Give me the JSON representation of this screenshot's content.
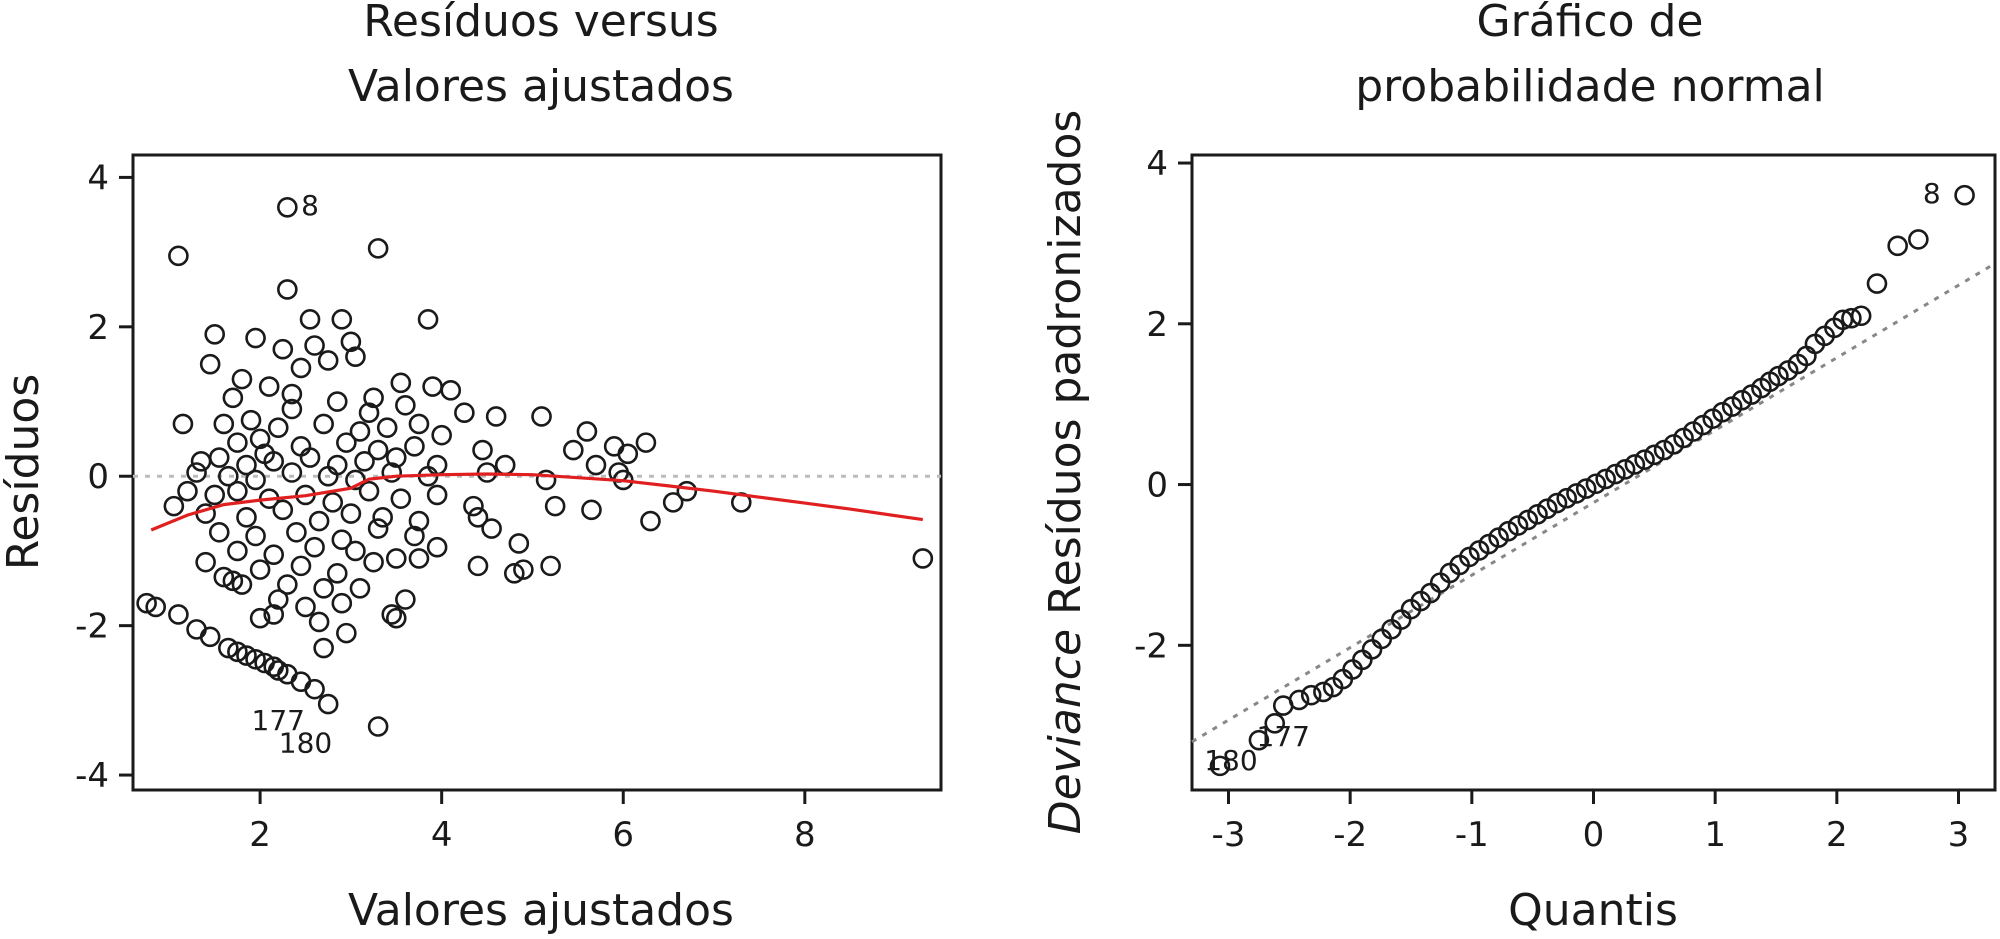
{
  "chart_data": [
    {
      "type": "scatter",
      "title_lines": [
        "Resíduos versus",
        "Valores ajustados"
      ],
      "xlabel": "Valores ajustados",
      "ylabel": "Resíduos",
      "xlim": [
        0.6,
        9.5
      ],
      "ylim": [
        -4.2,
        4.3
      ],
      "x_ticks": [
        2,
        4,
        6,
        8
      ],
      "y_ticks": [
        -4,
        -2,
        0,
        2,
        4
      ],
      "x_tick_labels": [
        "2",
        "4",
        "6",
        "8"
      ],
      "y_tick_labels": [
        "-4",
        "-2",
        "0",
        "2",
        "4"
      ],
      "grid": false,
      "reference_line": {
        "y": 0,
        "style": "dotted",
        "color": "#bbbbbb"
      },
      "smooth_line": {
        "color": "#e02020",
        "x": [
          0.8,
          1.2,
          1.6,
          2.0,
          2.5,
          3.0,
          3.2,
          3.5,
          4.0,
          4.5,
          5.0,
          5.5,
          6.0,
          6.5,
          7.0,
          7.5,
          8.0,
          8.5,
          9.3
        ],
        "y": [
          -0.72,
          -0.52,
          -0.38,
          -0.32,
          -0.26,
          -0.16,
          -0.04,
          0.0,
          0.02,
          0.03,
          0.02,
          -0.02,
          -0.06,
          -0.13,
          -0.2,
          -0.28,
          -0.36,
          -0.44,
          -0.58
        ]
      },
      "points": [
        [
          2.3,
          3.6
        ],
        [
          3.3,
          3.05
        ],
        [
          1.1,
          2.95
        ],
        [
          2.3,
          2.5
        ],
        [
          2.55,
          2.1
        ],
        [
          2.9,
          2.1
        ],
        [
          3.85,
          2.1
        ],
        [
          1.5,
          1.9
        ],
        [
          1.95,
          1.85
        ],
        [
          2.25,
          1.7
        ],
        [
          2.6,
          1.75
        ],
        [
          3.0,
          1.8
        ],
        [
          3.05,
          1.6
        ],
        [
          2.75,
          1.55
        ],
        [
          1.45,
          1.5
        ],
        [
          2.45,
          1.45
        ],
        [
          1.8,
          1.3
        ],
        [
          2.1,
          1.2
        ],
        [
          3.55,
          1.25
        ],
        [
          3.9,
          1.2
        ],
        [
          4.1,
          1.15
        ],
        [
          1.7,
          1.05
        ],
        [
          2.35,
          1.1
        ],
        [
          2.85,
          1.0
        ],
        [
          3.25,
          1.05
        ],
        [
          3.6,
          0.95
        ],
        [
          4.25,
          0.85
        ],
        [
          4.6,
          0.8
        ],
        [
          5.1,
          0.8
        ],
        [
          1.15,
          0.7
        ],
        [
          1.6,
          0.7
        ],
        [
          1.9,
          0.75
        ],
        [
          2.2,
          0.65
        ],
        [
          2.7,
          0.7
        ],
        [
          3.1,
          0.6
        ],
        [
          3.4,
          0.65
        ],
        [
          3.75,
          0.7
        ],
        [
          4.0,
          0.55
        ],
        [
          5.6,
          0.6
        ],
        [
          6.25,
          0.45
        ],
        [
          1.75,
          0.45
        ],
        [
          2.0,
          0.5
        ],
        [
          2.45,
          0.4
        ],
        [
          2.95,
          0.45
        ],
        [
          3.3,
          0.35
        ],
        [
          3.7,
          0.4
        ],
        [
          4.45,
          0.35
        ],
        [
          5.45,
          0.35
        ],
        [
          5.9,
          0.4
        ],
        [
          6.05,
          0.3
        ],
        [
          1.35,
          0.2
        ],
        [
          1.55,
          0.25
        ],
        [
          1.85,
          0.15
        ],
        [
          2.15,
          0.2
        ],
        [
          2.55,
          0.25
        ],
        [
          2.85,
          0.15
        ],
        [
          3.15,
          0.2
        ],
        [
          3.5,
          0.25
        ],
        [
          3.95,
          0.15
        ],
        [
          4.7,
          0.15
        ],
        [
          5.7,
          0.15
        ],
        [
          1.3,
          0.05
        ],
        [
          1.65,
          0.0
        ],
        [
          1.95,
          -0.05
        ],
        [
          2.35,
          0.05
        ],
        [
          2.75,
          0.0
        ],
        [
          3.05,
          -0.05
        ],
        [
          3.45,
          0.05
        ],
        [
          3.85,
          0.0
        ],
        [
          4.5,
          0.05
        ],
        [
          5.15,
          -0.05
        ],
        [
          5.95,
          0.05
        ],
        [
          6.0,
          -0.05
        ],
        [
          1.2,
          -0.2
        ],
        [
          1.5,
          -0.25
        ],
        [
          1.75,
          -0.2
        ],
        [
          2.1,
          -0.3
        ],
        [
          2.5,
          -0.25
        ],
        [
          2.8,
          -0.35
        ],
        [
          3.2,
          -0.2
        ],
        [
          3.55,
          -0.3
        ],
        [
          3.95,
          -0.25
        ],
        [
          4.35,
          -0.4
        ],
        [
          6.7,
          -0.2
        ],
        [
          1.05,
          -0.4
        ],
        [
          1.4,
          -0.5
        ],
        [
          1.85,
          -0.55
        ],
        [
          2.25,
          -0.45
        ],
        [
          2.65,
          -0.6
        ],
        [
          3.0,
          -0.5
        ],
        [
          3.35,
          -0.55
        ],
        [
          3.75,
          -0.6
        ],
        [
          4.4,
          -0.55
        ],
        [
          5.25,
          -0.4
        ],
        [
          5.65,
          -0.45
        ],
        [
          6.55,
          -0.35
        ],
        [
          7.3,
          -0.35
        ],
        [
          1.55,
          -0.75
        ],
        [
          1.95,
          -0.8
        ],
        [
          2.4,
          -0.75
        ],
        [
          2.9,
          -0.85
        ],
        [
          3.3,
          -0.7
        ],
        [
          3.7,
          -0.8
        ],
        [
          4.55,
          -0.7
        ],
        [
          6.3,
          -0.6
        ],
        [
          1.75,
          -1.0
        ],
        [
          2.15,
          -1.05
        ],
        [
          2.6,
          -0.95
        ],
        [
          3.05,
          -1.0
        ],
        [
          3.5,
          -1.1
        ],
        [
          3.95,
          -0.95
        ],
        [
          4.85,
          -0.9
        ],
        [
          1.4,
          -1.15
        ],
        [
          2.0,
          -1.25
        ],
        [
          2.45,
          -1.2
        ],
        [
          2.85,
          -1.3
        ],
        [
          3.25,
          -1.15
        ],
        [
          3.75,
          -1.1
        ],
        [
          4.4,
          -1.2
        ],
        [
          4.9,
          -1.25
        ],
        [
          5.2,
          -1.2
        ],
        [
          1.6,
          -1.35
        ],
        [
          1.7,
          -1.4
        ],
        [
          1.8,
          -1.45
        ],
        [
          2.3,
          -1.45
        ],
        [
          2.7,
          -1.5
        ],
        [
          3.1,
          -1.5
        ],
        [
          3.6,
          -1.65
        ],
        [
          2.2,
          -1.65
        ],
        [
          2.5,
          -1.75
        ],
        [
          2.9,
          -1.7
        ],
        [
          2.15,
          -1.85
        ],
        [
          2.65,
          -1.95
        ],
        [
          2.0,
          -1.9
        ],
        [
          3.45,
          -1.85
        ],
        [
          3.5,
          -1.9
        ],
        [
          2.95,
          -2.1
        ],
        [
          2.7,
          -2.3
        ],
        [
          0.75,
          -1.7
        ],
        [
          0.85,
          -1.75
        ],
        [
          1.1,
          -1.85
        ],
        [
          1.3,
          -2.05
        ],
        [
          1.45,
          -2.15
        ],
        [
          1.65,
          -2.3
        ],
        [
          1.75,
          -2.35
        ],
        [
          1.85,
          -2.4
        ],
        [
          1.95,
          -2.45
        ],
        [
          2.05,
          -2.5
        ],
        [
          2.15,
          -2.55
        ],
        [
          2.2,
          -2.6
        ],
        [
          2.3,
          -2.65
        ],
        [
          2.45,
          -2.75
        ],
        [
          2.6,
          -2.85
        ],
        [
          2.75,
          -3.05
        ],
        [
          3.3,
          -3.35
        ],
        [
          9.3,
          -1.1
        ],
        [
          4.8,
          -1.3
        ],
        [
          2.35,
          0.9
        ],
        [
          3.2,
          0.85
        ],
        [
          2.05,
          0.3
        ]
      ],
      "annotations": [
        {
          "text": "8",
          "x": 2.55,
          "y": 3.5
        },
        {
          "text": "177",
          "x": 2.2,
          "y": -3.4
        },
        {
          "text": "180",
          "x": 2.5,
          "y": -3.7
        }
      ]
    },
    {
      "type": "scatter",
      "title_lines": [
        "Gráfico de",
        "probabilidade normal"
      ],
      "xlabel": "Quantis",
      "ylabel_parts": [
        "Deviance",
        "Resíduos padronizados"
      ],
      "xlim": [
        -3.3,
        3.3
      ],
      "ylim": [
        -3.8,
        4.1
      ],
      "x_ticks": [
        -3,
        -2,
        -1,
        0,
        1,
        2,
        3
      ],
      "y_ticks": [
        -2,
        0,
        2,
        4
      ],
      "x_tick_labels": [
        "-3",
        "-2",
        "-1",
        "0",
        "1",
        "2",
        "3"
      ],
      "y_tick_labels": [
        "-2",
        "0",
        "2",
        "4"
      ],
      "grid": false,
      "reference_line": {
        "x": [
          -3.3,
          3.3
        ],
        "y": [
          -3.2,
          2.75
        ],
        "style": "dotted",
        "color": "#888888"
      },
      "points": [
        [
          3.05,
          3.6
        ],
        [
          2.67,
          3.05
        ],
        [
          2.5,
          2.97
        ],
        [
          2.33,
          2.5
        ],
        [
          2.2,
          2.1
        ],
        [
          2.12,
          2.07
        ],
        [
          2.05,
          2.05
        ],
        [
          1.98,
          1.95
        ],
        [
          1.9,
          1.85
        ],
        [
          1.82,
          1.75
        ],
        [
          1.75,
          1.6
        ],
        [
          1.68,
          1.5
        ],
        [
          1.6,
          1.42
        ],
        [
          1.52,
          1.35
        ],
        [
          1.45,
          1.28
        ],
        [
          1.38,
          1.2
        ],
        [
          1.3,
          1.12
        ],
        [
          1.22,
          1.05
        ],
        [
          1.14,
          0.97
        ],
        [
          1.06,
          0.9
        ],
        [
          0.98,
          0.82
        ],
        [
          0.9,
          0.74
        ],
        [
          0.82,
          0.66
        ],
        [
          0.74,
          0.58
        ],
        [
          0.66,
          0.5
        ],
        [
          0.58,
          0.43
        ],
        [
          0.5,
          0.37
        ],
        [
          0.42,
          0.31
        ],
        [
          0.34,
          0.25
        ],
        [
          0.26,
          0.19
        ],
        [
          0.18,
          0.13
        ],
        [
          0.1,
          0.07
        ],
        [
          0.02,
          0.01
        ],
        [
          -0.06,
          -0.05
        ],
        [
          -0.14,
          -0.11
        ],
        [
          -0.22,
          -0.17
        ],
        [
          -0.3,
          -0.23
        ],
        [
          -0.38,
          -0.3
        ],
        [
          -0.46,
          -0.37
        ],
        [
          -0.54,
          -0.44
        ],
        [
          -0.62,
          -0.51
        ],
        [
          -0.7,
          -0.58
        ],
        [
          -0.78,
          -0.66
        ],
        [
          -0.86,
          -0.74
        ],
        [
          -0.94,
          -0.82
        ],
        [
          -1.02,
          -0.9
        ],
        [
          -1.1,
          -1.0
        ],
        [
          -1.18,
          -1.1
        ],
        [
          -1.26,
          -1.22
        ],
        [
          -1.34,
          -1.35
        ],
        [
          -1.42,
          -1.45
        ],
        [
          -1.5,
          -1.55
        ],
        [
          -1.58,
          -1.68
        ],
        [
          -1.66,
          -1.8
        ],
        [
          -1.74,
          -1.92
        ],
        [
          -1.82,
          -2.05
        ],
        [
          -1.9,
          -2.18
        ],
        [
          -1.98,
          -2.3
        ],
        [
          -2.06,
          -2.42
        ],
        [
          -2.14,
          -2.52
        ],
        [
          -2.22,
          -2.58
        ],
        [
          -2.32,
          -2.62
        ],
        [
          -2.42,
          -2.68
        ],
        [
          -2.55,
          -2.75
        ],
        [
          -2.62,
          -2.97
        ],
        [
          -2.75,
          -3.18
        ],
        [
          -3.07,
          -3.5
        ]
      ],
      "annotations": [
        {
          "text": "8",
          "x": 2.78,
          "y": 3.5
        },
        {
          "text": "177",
          "x": -2.55,
          "y": -3.25
        },
        {
          "text": "180",
          "x": -2.98,
          "y": -3.55
        }
      ]
    }
  ]
}
